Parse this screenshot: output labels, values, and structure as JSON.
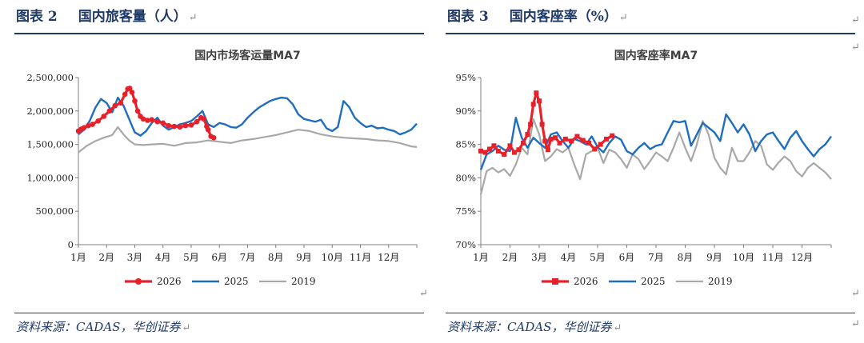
{
  "figures": [
    {
      "heading_prefix": "图表 2",
      "heading_title": "国内旅客量（人）",
      "source": "资料来源：CADAS，华创证券",
      "chart_data": {
        "type": "line",
        "title": "国内市场客运量MA7",
        "xlabel": "",
        "ylabel": "",
        "x_ticks": [
          "1月",
          "2月",
          "3月",
          "4月",
          "5月",
          "6月",
          "7月",
          "8月",
          "9月",
          "10月",
          "11月",
          "12月"
        ],
        "y_ticks": [
          "0",
          "500,000",
          "1,000,000",
          "1,500,000",
          "2,000,000",
          "2,500,000"
        ],
        "ylim": [
          0,
          2500000
        ],
        "xlim": [
          0,
          12
        ],
        "legend_position": "bottom",
        "series": [
          {
            "name": "2026",
            "color": "#e8202a",
            "marker": "circle",
            "width": 3.2,
            "x": [
              0,
              0.1,
              0.2,
              0.35,
              0.5,
              0.7,
              0.9,
              1.1,
              1.3,
              1.5,
              1.65,
              1.75,
              1.82,
              1.9,
              2.0,
              2.1,
              2.2,
              2.3,
              2.45,
              2.6,
              2.8,
              3.0,
              3.2,
              3.4,
              3.6,
              3.8,
              4.0,
              4.2,
              4.35,
              4.45,
              4.55,
              4.6,
              4.7,
              4.8
            ],
            "y": [
              1700000,
              1730000,
              1750000,
              1780000,
              1800000,
              1850000,
              1920000,
              2000000,
              2080000,
              2120000,
              2250000,
              2330000,
              2340000,
              2280000,
              2150000,
              2000000,
              1920000,
              1880000,
              1860000,
              1870000,
              1840000,
              1820000,
              1780000,
              1770000,
              1760000,
              1780000,
              1790000,
              1840000,
              1900000,
              1880000,
              1770000,
              1720000,
              1620000,
              1600000
            ]
          },
          {
            "name": "2025",
            "color": "#1f6dbf",
            "marker": "none",
            "width": 2.4,
            "x": [
              0,
              0.2,
              0.4,
              0.6,
              0.8,
              1.0,
              1.2,
              1.4,
              1.6,
              1.8,
              2.0,
              2.2,
              2.4,
              2.6,
              2.8,
              3.0,
              3.2,
              3.4,
              3.6,
              3.8,
              4.0,
              4.2,
              4.4,
              4.6,
              4.8,
              5.0,
              5.2,
              5.4,
              5.6,
              5.8,
              6.0,
              6.2,
              6.4,
              6.6,
              6.8,
              7.0,
              7.2,
              7.4,
              7.6,
              7.8,
              8.0,
              8.2,
              8.4,
              8.6,
              8.8,
              9.0,
              9.2,
              9.4,
              9.6,
              9.8,
              10.0,
              10.2,
              10.4,
              10.6,
              10.8,
              11.0,
              11.2,
              11.4,
              11.6,
              11.8,
              12.0
            ],
            "y": [
              1650000,
              1720000,
              1850000,
              2050000,
              2180000,
              2120000,
              1980000,
              2200000,
              2080000,
              1880000,
              1680000,
              1630000,
              1700000,
              1820000,
              1900000,
              1780000,
              1720000,
              1760000,
              1800000,
              1820000,
              1850000,
              1920000,
              2000000,
              1800000,
              1760000,
              1820000,
              1800000,
              1760000,
              1750000,
              1800000,
              1900000,
              1980000,
              2050000,
              2100000,
              2150000,
              2180000,
              2200000,
              2190000,
              2100000,
              1950000,
              1880000,
              1860000,
              1840000,
              1870000,
              1740000,
              1700000,
              1760000,
              2150000,
              2060000,
              1900000,
              1820000,
              1760000,
              1780000,
              1740000,
              1750000,
              1720000,
              1700000,
              1650000,
              1680000,
              1720000,
              1810000
            ]
          },
          {
            "name": "2019",
            "color": "#a8a8a8",
            "marker": "none",
            "width": 2.2,
            "x": [
              0,
              0.3,
              0.6,
              0.9,
              1.2,
              1.4,
              1.6,
              1.8,
              2.0,
              2.3,
              2.6,
              3.0,
              3.4,
              3.8,
              4.2,
              4.6,
              5.0,
              5.4,
              5.8,
              6.2,
              6.6,
              7.0,
              7.4,
              7.8,
              8.2,
              8.6,
              9.0,
              9.4,
              9.8,
              10.2,
              10.6,
              11.0,
              11.4,
              11.8,
              12.0
            ],
            "y": [
              1380000,
              1480000,
              1550000,
              1600000,
              1640000,
              1760000,
              1650000,
              1560000,
              1500000,
              1490000,
              1500000,
              1510000,
              1480000,
              1520000,
              1530000,
              1560000,
              1540000,
              1520000,
              1560000,
              1580000,
              1610000,
              1640000,
              1680000,
              1720000,
              1700000,
              1650000,
              1620000,
              1600000,
              1590000,
              1580000,
              1560000,
              1550000,
              1520000,
              1470000,
              1460000
            ]
          }
        ]
      }
    },
    {
      "heading_prefix": "图表 3",
      "heading_title": "国内客座率（%）",
      "source": "资料来源：CADAS，华创证券",
      "chart_data": {
        "type": "line",
        "title": "国内客座率MA7",
        "xlabel": "",
        "ylabel": "",
        "x_ticks": [
          "1月",
          "2月",
          "3月",
          "4月",
          "5月",
          "6月",
          "7月",
          "8月",
          "9月",
          "10月",
          "11月",
          "12月"
        ],
        "y_ticks": [
          "70%",
          "75%",
          "80%",
          "85%",
          "90%",
          "95%"
        ],
        "ylim": [
          70,
          95
        ],
        "xlim": [
          0,
          12
        ],
        "legend_position": "bottom",
        "series": [
          {
            "name": "2026",
            "color": "#e8202a",
            "marker": "square",
            "width": 3.2,
            "x": [
              0,
              0.15,
              0.3,
              0.45,
              0.6,
              0.8,
              1.0,
              1.15,
              1.3,
              1.45,
              1.6,
              1.7,
              1.8,
              1.9,
              2.0,
              2.1,
              2.2,
              2.3,
              2.4,
              2.55,
              2.7,
              2.9,
              3.1,
              3.3,
              3.5,
              3.7,
              3.9,
              4.1,
              4.3,
              4.5
            ],
            "y": [
              84,
              83.8,
              84.3,
              84.8,
              84,
              83.5,
              84.8,
              83.8,
              84.2,
              85.2,
              86.5,
              88,
              91,
              92.7,
              91.5,
              88,
              85.5,
              84.2,
              85.8,
              86,
              85.2,
              85.8,
              85.5,
              86.2,
              85.6,
              85.2,
              84.3,
              85,
              85.8,
              86.3
            ]
          },
          {
            "name": "2025",
            "color": "#1f6dbf",
            "marker": "none",
            "width": 2.4,
            "x": [
              0,
              0.2,
              0.4,
              0.6,
              0.8,
              1.0,
              1.2,
              1.4,
              1.6,
              1.8,
              2.0,
              2.2,
              2.4,
              2.6,
              2.8,
              3.0,
              3.2,
              3.4,
              3.6,
              3.8,
              4.0,
              4.2,
              4.4,
              4.6,
              4.8,
              5.0,
              5.2,
              5.4,
              5.6,
              5.8,
              6.0,
              6.2,
              6.4,
              6.6,
              6.8,
              7.0,
              7.2,
              7.4,
              7.6,
              7.8,
              8.0,
              8.2,
              8.4,
              8.6,
              8.8,
              9.0,
              9.2,
              9.4,
              9.6,
              9.8,
              10.0,
              10.2,
              10.4,
              10.6,
              10.8,
              11.0,
              11.2,
              11.4,
              11.6,
              11.8,
              12.0
            ],
            "y": [
              81.2,
              83.5,
              84,
              84.8,
              84.2,
              84,
              89,
              86,
              84.5,
              86,
              85.2,
              84.5,
              86.5,
              86.8,
              85.5,
              84.5,
              85.8,
              85.5,
              85,
              86.2,
              84.6,
              83.8,
              85.2,
              86.2,
              85.7,
              84,
              83.5,
              84.5,
              85.2,
              84.3,
              84.8,
              85,
              86.8,
              88.5,
              88.3,
              88.5,
              84.8,
              86.5,
              88.2,
              87.5,
              86.8,
              85.5,
              89.5,
              88.2,
              86.8,
              88,
              86.5,
              84,
              85.5,
              86.5,
              86.8,
              85.5,
              84.3,
              86,
              87,
              85.5,
              84.3,
              83.2,
              84.3,
              85,
              86.2
            ]
          },
          {
            "name": "2019",
            "color": "#a8a8a8",
            "marker": "none",
            "width": 2.2,
            "x": [
              0,
              0.2,
              0.4,
              0.6,
              0.8,
              1.0,
              1.2,
              1.4,
              1.6,
              1.8,
              2.0,
              2.2,
              2.4,
              2.6,
              2.8,
              3.0,
              3.2,
              3.4,
              3.6,
              3.8,
              4.0,
              4.2,
              4.4,
              4.6,
              4.8,
              5.0,
              5.2,
              5.4,
              5.6,
              5.8,
              6.0,
              6.2,
              6.4,
              6.6,
              6.8,
              7.0,
              7.2,
              7.4,
              7.6,
              7.8,
              8.0,
              8.2,
              8.4,
              8.6,
              8.8,
              9.0,
              9.2,
              9.4,
              9.6,
              9.8,
              10.0,
              10.2,
              10.4,
              10.6,
              10.8,
              11.0,
              11.2,
              11.4,
              11.6,
              11.8,
              12.0
            ],
            "y": [
              77.5,
              81,
              81.5,
              80.8,
              81.3,
              80.3,
              82,
              84.5,
              83.5,
              88.8,
              86.5,
              82.5,
              83.2,
              84.3,
              83.8,
              84.5,
              82,
              79.8,
              83.5,
              84,
              84.5,
              82.2,
              84.2,
              83.8,
              82.8,
              81.5,
              83.5,
              82.8,
              81.3,
              82.5,
              83.8,
              83.2,
              82.5,
              84.5,
              86.8,
              84.5,
              82.5,
              85,
              88.5,
              86.5,
              83,
              81.5,
              80.5,
              84.5,
              82.5,
              82.5,
              83.8,
              85.5,
              84.8,
              82,
              81.2,
              82.3,
              83.2,
              82.5,
              81,
              80.2,
              81.5,
              82.2,
              81.5,
              80.8,
              79.8
            ]
          }
        ]
      }
    }
  ]
}
